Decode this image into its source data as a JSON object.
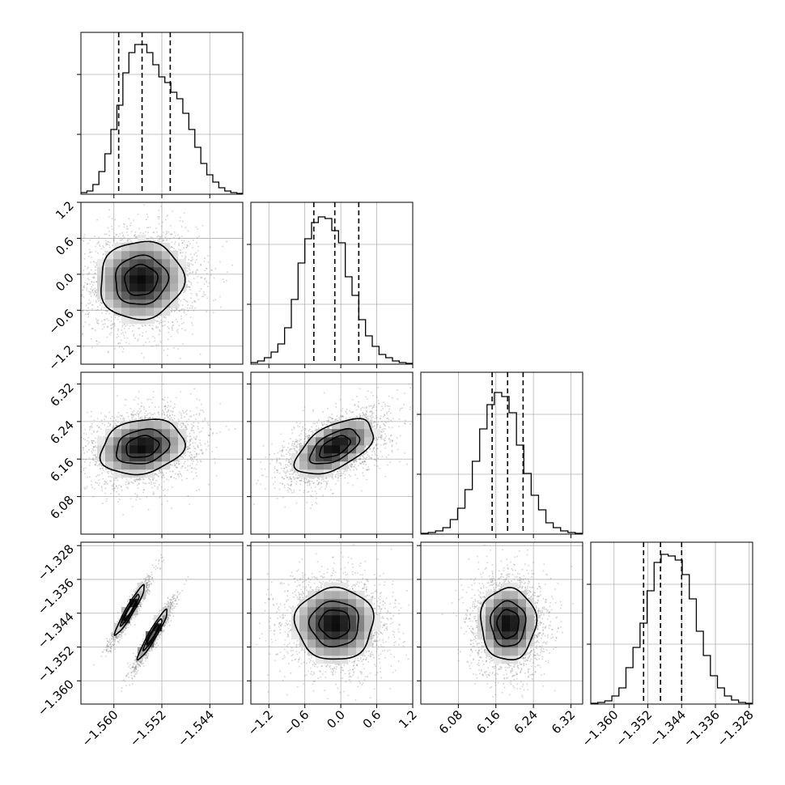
{
  "chart_data": {
    "type": "corner",
    "title": "",
    "n_params": 4,
    "params": [
      {
        "label": "",
        "range": [
          -1.5655,
          -1.5385
        ],
        "ticks": [
          -1.56,
          -1.552,
          -1.544
        ],
        "tick_labels": [
          "−1.560",
          "−1.552",
          "−1.544"
        ],
        "quantiles": [
          -1.5592,
          -1.5553,
          -1.5506
        ]
      },
      {
        "label": "",
        "range": [
          -1.5,
          1.2
        ],
        "ticks": [
          -1.2,
          -0.6,
          0.0,
          0.6,
          1.2
        ],
        "tick_labels": [
          "−1.2",
          "−0.6",
          "0.0",
          "0.6",
          "1.2"
        ],
        "quantiles": [
          -0.45,
          -0.1,
          0.3
        ]
      },
      {
        "label": "",
        "range": [
          6.0,
          6.345
        ],
        "ticks": [
          6.08,
          6.16,
          6.24,
          6.32
        ],
        "tick_labels": [
          "6.08",
          "6.16",
          "6.24",
          "6.32"
        ],
        "quantiles": [
          6.152,
          6.185,
          6.218
        ]
      },
      {
        "label": "",
        "range": [
          -1.3655,
          -1.3272
        ],
        "ticks": [
          -1.36,
          -1.352,
          -1.344,
          -1.336,
          -1.328
        ],
        "tick_labels": [
          "−1.360",
          "−1.352",
          "−1.344",
          "−1.336",
          "−1.328"
        ],
        "quantiles": [
          -1.353,
          -1.349,
          -1.344
        ]
      }
    ],
    "histograms": [
      [
        2,
        4,
        12,
        28,
        50,
        80,
        110,
        150,
        175,
        185,
        185,
        175,
        160,
        145,
        138,
        126,
        118,
        100,
        80,
        58,
        38,
        24,
        15,
        8,
        4,
        2,
        1
      ],
      [
        2,
        4,
        8,
        15,
        25,
        45,
        80,
        125,
        155,
        175,
        182,
        180,
        165,
        150,
        108,
        85,
        55,
        35,
        22,
        12,
        8,
        4,
        2,
        1
      ],
      [
        1,
        2,
        4,
        8,
        18,
        32,
        55,
        90,
        130,
        160,
        175,
        170,
        150,
        110,
        75,
        48,
        30,
        14,
        8,
        4,
        2,
        1
      ],
      [
        1,
        2,
        4,
        10,
        20,
        45,
        70,
        100,
        140,
        175,
        185,
        183,
        178,
        160,
        130,
        90,
        60,
        35,
        20,
        10,
        5,
        2,
        1
      ]
    ],
    "pairs": [
      {
        "x": 0,
        "y": 1,
        "modes": [
          {
            "mx": -1.5555,
            "my": -0.1,
            "sx": 0.0045,
            "sy": 0.42,
            "rho": 0.05,
            "w": 1
          }
        ]
      },
      {
        "x": 0,
        "y": 2,
        "modes": [
          {
            "mx": -1.5553,
            "my": 6.186,
            "sx": 0.0045,
            "sy": 0.038,
            "rho": 0.2,
            "w": 1
          }
        ]
      },
      {
        "x": 1,
        "y": 2,
        "modes": [
          {
            "mx": -0.1,
            "my": 6.186,
            "sx": 0.42,
            "sy": 0.038,
            "rho": 0.55,
            "w": 1
          }
        ]
      },
      {
        "x": 0,
        "y": 3,
        "modes": [
          {
            "mx": -1.5573,
            "my": -1.3432,
            "sx": 0.0016,
            "sy": 0.0038,
            "rho": 0.95,
            "w": 0.5
          },
          {
            "mx": -1.5535,
            "my": -1.349,
            "sx": 0.0016,
            "sy": 0.0038,
            "rho": 0.95,
            "w": 0.5
          }
        ]
      },
      {
        "x": 1,
        "y": 3,
        "modes": [
          {
            "mx": -0.1,
            "my": -1.3465,
            "sx": 0.42,
            "sy": 0.0055,
            "rho": 0.0,
            "w": 1
          }
        ]
      },
      {
        "x": 2,
        "y": 3,
        "modes": [
          {
            "mx": 6.186,
            "my": -1.3465,
            "sx": 0.038,
            "sy": 0.0055,
            "rho": 0.0,
            "w": 1
          }
        ]
      }
    ],
    "hist_ylim": [
      0,
      200
    ],
    "hist_grid_fractions": [
      0.37,
      0.74
    ],
    "grid": true,
    "contour_levels": [
      0.3,
      0.6,
      0.9
    ],
    "colors": {
      "line": "#000000",
      "grid": "#b0b0b0",
      "points": "#808080",
      "frame": "#000000",
      "background": "#ffffff"
    }
  }
}
